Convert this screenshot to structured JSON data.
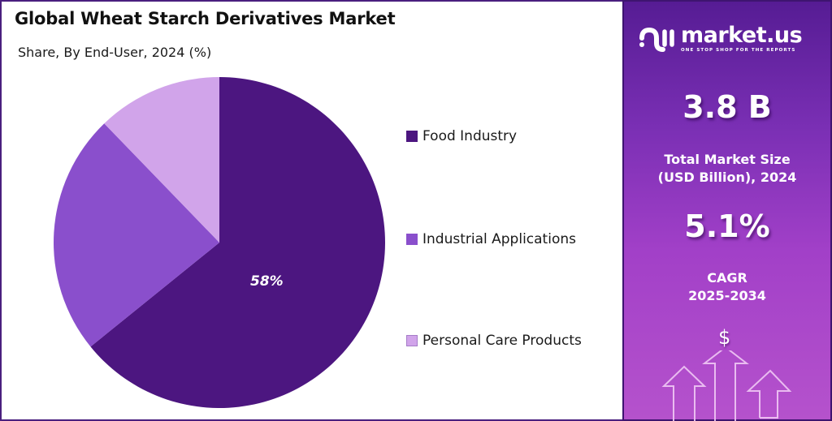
{
  "header": {
    "title": "Global Wheat Starch Derivatives Market",
    "subtitle": "Share, By End-User, 2024 (%)"
  },
  "chart_data": {
    "type": "pie",
    "title": "Global Wheat Starch Derivatives Market",
    "subtitle": "Share, By End-User, 2024 (%)",
    "categories": [
      "Food Industry",
      "Industrial Applications",
      "Personal Care Products"
    ],
    "values": [
      58,
      30,
      12
    ],
    "labeled_values": {
      "Food Industry": "58%"
    },
    "colors": [
      "#4c1680",
      "#8a4fcc",
      "#d1a4ea"
    ],
    "legend_position": "right",
    "start_angle": "12 o'clock, clockwise"
  },
  "pie": {
    "label": "58%"
  },
  "legend": {
    "items": [
      {
        "label": "Food Industry",
        "color": "#4c1680"
      },
      {
        "label": "Industrial Applications",
        "color": "#8a4fcc"
      },
      {
        "label": "Personal Care Products",
        "color": "#d1a4ea"
      }
    ]
  },
  "brand": {
    "name": "market.us",
    "tagline": "ONE STOP SHOP FOR THE REPORTS"
  },
  "stats": {
    "market_size_value": "3.8 B",
    "market_size_caption_line1": "Total Market Size",
    "market_size_caption_line2": "(USD Billion), 2024",
    "cagr_value": "5.1%",
    "cagr_caption_line1": "CAGR",
    "cagr_caption_line2": "2025-2034"
  },
  "decoration": {
    "dollar_symbol": "$"
  },
  "colors": {
    "border": "#4a1f7e",
    "panel_top": "#561c94",
    "panel_bottom": "#b552cc"
  }
}
